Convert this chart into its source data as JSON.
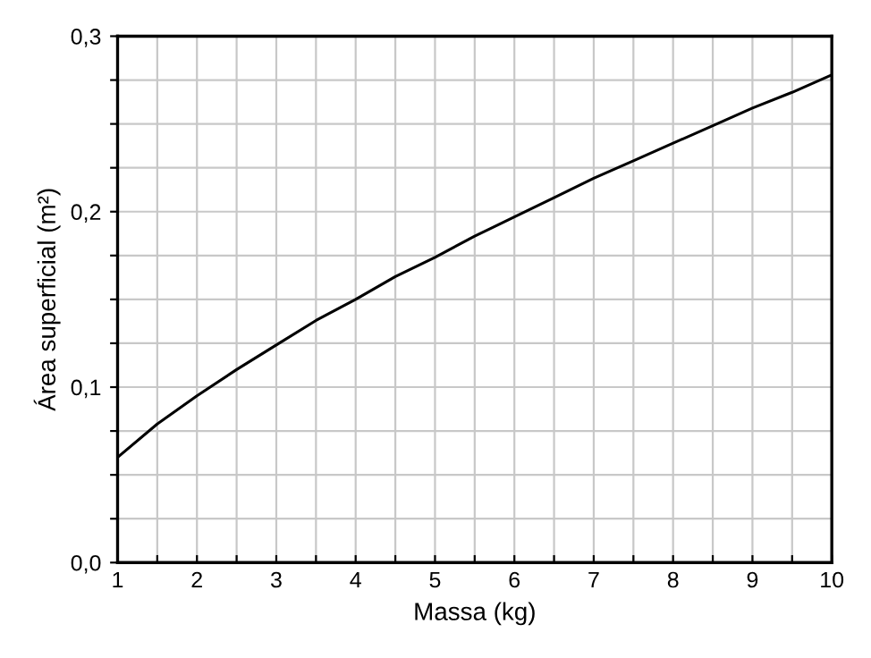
{
  "chart_data": {
    "type": "line",
    "xlabel": "Massa (kg)",
    "ylabel": "Área superficial (m²)",
    "x": [
      1,
      1.5,
      2,
      2.5,
      3,
      3.5,
      4,
      4.5,
      5,
      5.5,
      6,
      6.5,
      7,
      7.5,
      8,
      8.5,
      9,
      9.5,
      10
    ],
    "series": [
      {
        "color": "#000000",
        "values": [
          0.06,
          0.079,
          0.095,
          0.11,
          0.124,
          0.138,
          0.15,
          0.163,
          0.174,
          0.186,
          0.197,
          0.208,
          0.219,
          0.229,
          0.239,
          0.249,
          0.259,
          0.268,
          0.278
        ]
      }
    ],
    "xlim": [
      1,
      10
    ],
    "ylim": [
      0,
      0.3
    ],
    "xticks": [
      1,
      {
        "value": 1.5,
        "label": null
      },
      2,
      {
        "value": 2.5,
        "label": null
      },
      3,
      {
        "value": 3.5,
        "label": null
      },
      4,
      {
        "value": 4.5,
        "label": null
      },
      5,
      {
        "value": 5.5,
        "label": null
      },
      6,
      {
        "value": 6.5,
        "label": null
      },
      7,
      {
        "value": 7.5,
        "label": null
      },
      8,
      {
        "value": 8.5,
        "label": null
      },
      9,
      {
        "value": 9.5,
        "label": null
      },
      10
    ],
    "yticks": [
      {
        "value": 0,
        "label": "0,0"
      },
      {
        "value": 0.025,
        "label": null
      },
      {
        "value": 0.05,
        "label": null
      },
      {
        "value": 0.075,
        "label": null
      },
      {
        "value": 0.1,
        "label": "0,1"
      },
      {
        "value": 0.125,
        "label": null
      },
      {
        "value": 0.15,
        "label": null
      },
      {
        "value": 0.175,
        "label": null
      },
      {
        "value": 0.2,
        "label": "0,2"
      },
      {
        "value": 0.225,
        "label": null
      },
      {
        "value": 0.25,
        "label": null
      },
      {
        "value": 0.275,
        "label": null
      },
      {
        "value": 0.3,
        "label": "0,3"
      }
    ],
    "grid": true,
    "legend": false,
    "marker": "none",
    "line_style": "solid"
  }
}
